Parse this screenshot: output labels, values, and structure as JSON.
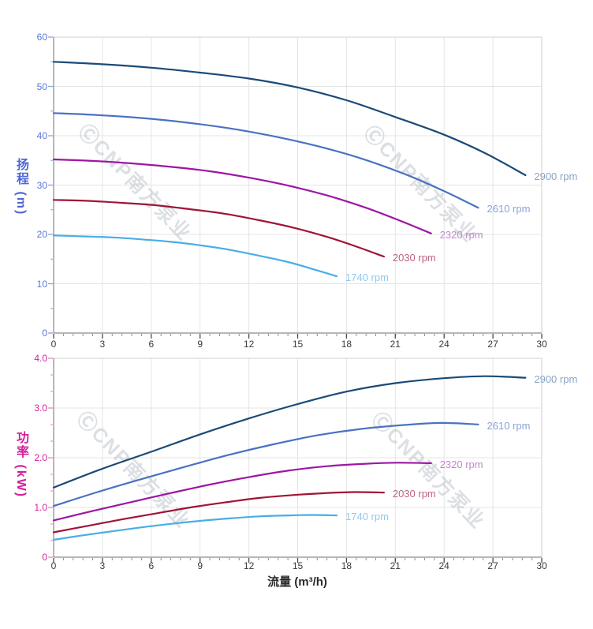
{
  "watermark": {
    "text": "ⒸCNP南方泵业"
  },
  "x_axis": {
    "title": "流量 (m³/h)",
    "tick_labels": [
      "0",
      "3",
      "6",
      "9",
      "12",
      "15",
      "18",
      "21",
      "24",
      "27",
      "30"
    ],
    "tick_label_color": "#3a3a3a"
  },
  "chart_data": [
    {
      "type": "line",
      "title": "",
      "xlabel": "流量 (m³/h)",
      "ylabel": "扬程 (m)",
      "xlim": [
        0,
        30
      ],
      "ylim": [
        0,
        60
      ],
      "grid": true,
      "legend_position": "end-of-line-labels",
      "x_tick_labels": [
        "0",
        "3",
        "6",
        "9",
        "12",
        "15",
        "18",
        "21",
        "24",
        "27",
        "30"
      ],
      "y_tick_labels": [
        "0",
        "10",
        "20",
        "30",
        "40",
        "50",
        "60"
      ],
      "axis_tick_label_color": "#5b76d8",
      "axis_tick_color": "#8fa0dc",
      "series": [
        {
          "name": "2900 rpm",
          "color": "#1a4a78",
          "label_color": "#8aa4c4",
          "points": [
            [
              0,
              55
            ],
            [
              3,
              54.5
            ],
            [
              6,
              53.8
            ],
            [
              9,
              52.8
            ],
            [
              12,
              51.6
            ],
            [
              15,
              49.8
            ],
            [
              18,
              47.2
            ],
            [
              21,
              43.8
            ],
            [
              24,
              40.2
            ],
            [
              26.5,
              36.5
            ],
            [
              29,
              32
            ]
          ]
        },
        {
          "name": "2610 rpm",
          "color": "#4a72c2",
          "label_color": "#89a3da",
          "points": [
            [
              0,
              44.6
            ],
            [
              2.7,
              44.2
            ],
            [
              5.4,
              43.6
            ],
            [
              8.1,
              42.7
            ],
            [
              10.8,
              41.5
            ],
            [
              13.5,
              39.9
            ],
            [
              16.2,
              37.9
            ],
            [
              18.9,
              35.4
            ],
            [
              21.6,
              32.2
            ],
            [
              23.85,
              29
            ],
            [
              26.1,
              25.4
            ]
          ]
        },
        {
          "name": "2320 rpm",
          "color": "#9d17a3",
          "label_color": "#c287cf",
          "points": [
            [
              0,
              35.2
            ],
            [
              2.4,
              34.9
            ],
            [
              4.8,
              34.4
            ],
            [
              7.2,
              33.7
            ],
            [
              9.6,
              32.8
            ],
            [
              12,
              31.5
            ],
            [
              14.4,
              29.9
            ],
            [
              16.8,
              27.9
            ],
            [
              19.2,
              25.4
            ],
            [
              21.2,
              22.9
            ],
            [
              23.2,
              20.2
            ]
          ]
        },
        {
          "name": "2030 rpm",
          "color": "#9e1538",
          "label_color": "#bc6480",
          "points": [
            [
              0,
              27
            ],
            [
              2.1,
              26.8
            ],
            [
              4.2,
              26.4
            ],
            [
              6.3,
              25.9
            ],
            [
              8.4,
              25.1
            ],
            [
              10.5,
              24.2
            ],
            [
              12.6,
              22.9
            ],
            [
              14.7,
              21.4
            ],
            [
              16.8,
              19.5
            ],
            [
              18.55,
              17.6
            ],
            [
              20.3,
              15.5
            ]
          ]
        },
        {
          "name": "1740 rpm",
          "color": "#47aee6",
          "label_color": "#8ccaf0",
          "points": [
            [
              0,
              19.8
            ],
            [
              1.8,
              19.6
            ],
            [
              3.6,
              19.4
            ],
            [
              5.4,
              19
            ],
            [
              7.2,
              18.5
            ],
            [
              9,
              17.8
            ],
            [
              10.8,
              16.9
            ],
            [
              12.6,
              15.7
            ],
            [
              14.4,
              14.4
            ],
            [
              15.9,
              13
            ],
            [
              17.4,
              11.5
            ]
          ]
        }
      ]
    },
    {
      "type": "line",
      "title": "",
      "xlabel": "流量 (m³/h)",
      "ylabel": "功率 (kW)",
      "xlim": [
        0,
        30
      ],
      "ylim": [
        0,
        4.0
      ],
      "grid": true,
      "legend_position": "end-of-line-labels",
      "x_tick_labels": [
        "0",
        "3",
        "6",
        "9",
        "12",
        "15",
        "18",
        "21",
        "24",
        "27",
        "30"
      ],
      "y_tick_labels": [
        "0",
        "1.0",
        "2.0",
        "3.0",
        "4.0"
      ],
      "axis_tick_label_color": "#d4219b",
      "axis_tick_color": "#ee84c6",
      "series": [
        {
          "name": "2900 rpm",
          "color": "#1a4a78",
          "label_color": "#8aa4c4",
          "points": [
            [
              0,
              1.4
            ],
            [
              3,
              1.78
            ],
            [
              6,
              2.12
            ],
            [
              9,
              2.47
            ],
            [
              12,
              2.79
            ],
            [
              15,
              3.08
            ],
            [
              18,
              3.33
            ],
            [
              21,
              3.5
            ],
            [
              24,
              3.6
            ],
            [
              26.5,
              3.64
            ],
            [
              29,
              3.61
            ]
          ]
        },
        {
          "name": "2610 rpm",
          "color": "#4a72c2",
          "label_color": "#89a3da",
          "points": [
            [
              0,
              1.03
            ],
            [
              2.7,
              1.31
            ],
            [
              5.4,
              1.57
            ],
            [
              8.1,
              1.82
            ],
            [
              10.8,
              2.06
            ],
            [
              13.5,
              2.27
            ],
            [
              16.2,
              2.45
            ],
            [
              18.9,
              2.58
            ],
            [
              21.6,
              2.66
            ],
            [
              23.85,
              2.7
            ],
            [
              26.1,
              2.67
            ]
          ]
        },
        {
          "name": "2320 rpm",
          "color": "#9d17a3",
          "label_color": "#c287cf",
          "points": [
            [
              0,
              0.74
            ],
            [
              2.4,
              0.93
            ],
            [
              4.8,
              1.11
            ],
            [
              7.2,
              1.29
            ],
            [
              9.6,
              1.46
            ],
            [
              12,
              1.61
            ],
            [
              14.4,
              1.74
            ],
            [
              16.8,
              1.83
            ],
            [
              19.2,
              1.88
            ],
            [
              21.2,
              1.9
            ],
            [
              23.2,
              1.89
            ]
          ]
        },
        {
          "name": "2030 rpm",
          "color": "#9e1538",
          "label_color": "#bc6480",
          "points": [
            [
              0,
              0.5
            ],
            [
              2.1,
              0.63
            ],
            [
              4.2,
              0.76
            ],
            [
              6.3,
              0.88
            ],
            [
              8.4,
              1.0
            ],
            [
              10.5,
              1.1
            ],
            [
              12.6,
              1.19
            ],
            [
              14.7,
              1.25
            ],
            [
              16.8,
              1.29
            ],
            [
              18.55,
              1.31
            ],
            [
              20.3,
              1.3
            ]
          ]
        },
        {
          "name": "1740 rpm",
          "color": "#47aee6",
          "label_color": "#8ccaf0",
          "points": [
            [
              0,
              0.35
            ],
            [
              1.8,
              0.44
            ],
            [
              3.6,
              0.52
            ],
            [
              5.4,
              0.6
            ],
            [
              7.2,
              0.67
            ],
            [
              9,
              0.73
            ],
            [
              10.8,
              0.78
            ],
            [
              12.6,
              0.82
            ],
            [
              14.4,
              0.84
            ],
            [
              15.9,
              0.85
            ],
            [
              17.4,
              0.84
            ]
          ]
        }
      ]
    }
  ]
}
